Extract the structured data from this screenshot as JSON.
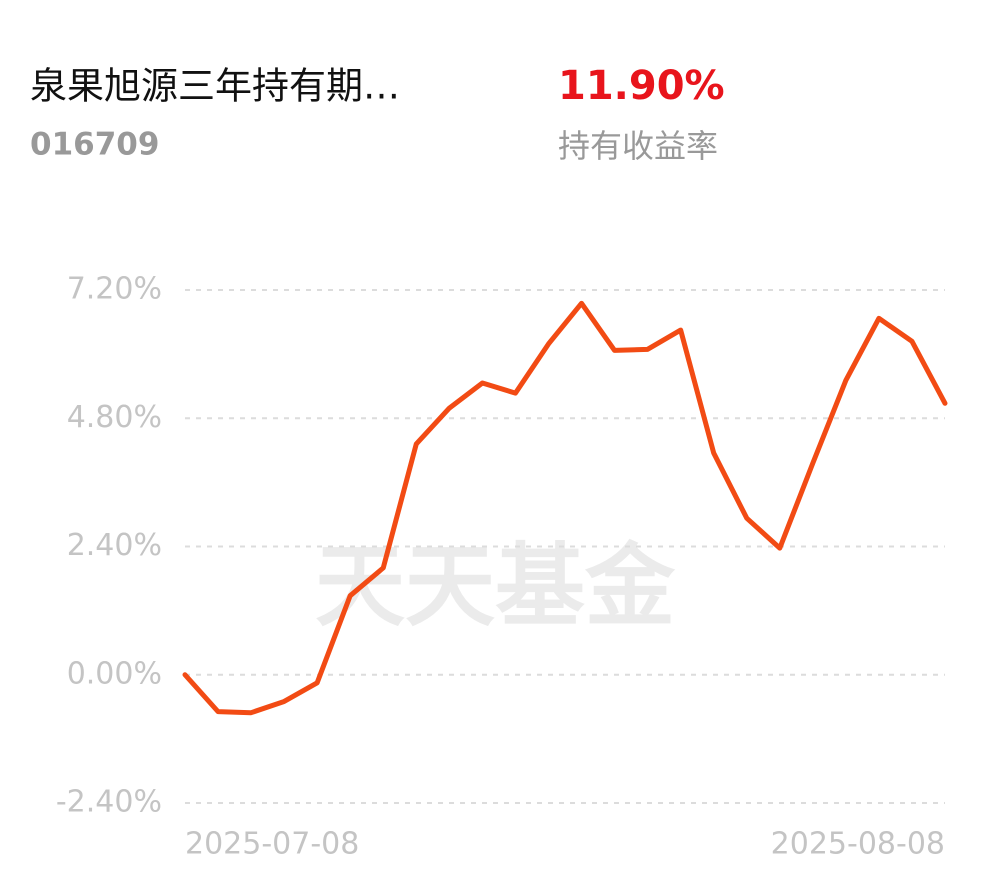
{
  "header": {
    "fund_name": "泉果旭源三年持有期…",
    "fund_code": "016709",
    "return_value": "11.90%",
    "return_label": "持有收益率"
  },
  "chart_data": {
    "type": "line",
    "watermark": "天天基金",
    "categories": [
      "2025-07-08",
      null,
      null,
      null,
      null,
      null,
      null,
      null,
      null,
      null,
      null,
      null,
      null,
      null,
      null,
      null,
      null,
      null,
      null,
      null,
      null,
      null,
      null,
      "2025-08-08"
    ],
    "series": [
      {
        "name": "持有收益率",
        "color": "#f24b14",
        "values": [
          0.0,
          -0.69,
          -0.71,
          -0.5,
          -0.15,
          1.48,
          2.0,
          4.32,
          4.99,
          5.46,
          5.27,
          6.19,
          6.95,
          6.07,
          6.09,
          6.45,
          4.15,
          2.93,
          2.37,
          3.96,
          5.51,
          6.67,
          6.24,
          5.08
        ]
      }
    ],
    "ylim": [
      -2.4,
      7.2
    ],
    "yticks": [
      {
        "value": 7.2,
        "label": "7.20%"
      },
      {
        "value": 4.8,
        "label": "4.80%"
      },
      {
        "value": 2.4,
        "label": "2.40%"
      },
      {
        "value": 0,
        "label": "0.00%"
      },
      {
        "value": -2.4,
        "label": "-2.40%"
      }
    ],
    "grid": true
  }
}
